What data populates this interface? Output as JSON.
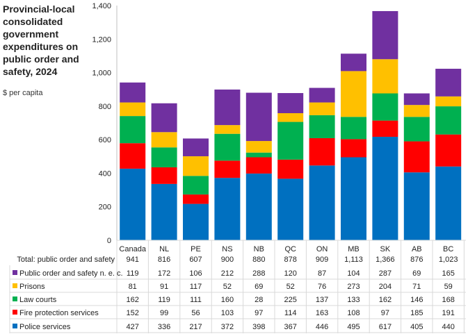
{
  "chart_data": {
    "type": "bar",
    "stacked": true,
    "title": "Provincial-local consolidated government expenditures on public order and safety, 2024",
    "ylabel": "$ per capita",
    "ylim": [
      0,
      1400
    ],
    "yticks": [
      "0",
      "200",
      "400",
      "600",
      "800",
      "1,000",
      "1,200",
      "1,400"
    ],
    "grid": false,
    "legend": "data-table",
    "categories": [
      "Canada",
      "NL",
      "PE",
      "NS",
      "NB",
      "QC",
      "ON",
      "MB",
      "SK",
      "AB",
      "BC"
    ],
    "total": {
      "name": "Total: public order and safety",
      "values": [
        "941",
        "816",
        "607",
        "900",
        "880",
        "878",
        "909",
        "1,113",
        "1,366",
        "876",
        "1,023"
      ]
    },
    "series": [
      {
        "name": "Public order and safety n. e. c.",
        "color": "#7030A0",
        "values": [
          119,
          172,
          106,
          212,
          288,
          120,
          87,
          104,
          287,
          69,
          165
        ]
      },
      {
        "name": "Prisons",
        "color": "#FFC000",
        "values": [
          81,
          91,
          117,
          52,
          69,
          52,
          76,
          273,
          204,
          71,
          59
        ]
      },
      {
        "name": "Law courts",
        "color": "#00B050",
        "values": [
          162,
          119,
          111,
          160,
          28,
          225,
          137,
          133,
          162,
          146,
          168
        ]
      },
      {
        "name": "Fire protection services",
        "color": "#FF0000",
        "values": [
          152,
          99,
          56,
          103,
          97,
          114,
          163,
          108,
          97,
          185,
          191
        ]
      },
      {
        "name": "Police services",
        "color": "#0070C0",
        "values": [
          427,
          336,
          217,
          372,
          398,
          367,
          446,
          495,
          617,
          405,
          440
        ]
      }
    ]
  }
}
